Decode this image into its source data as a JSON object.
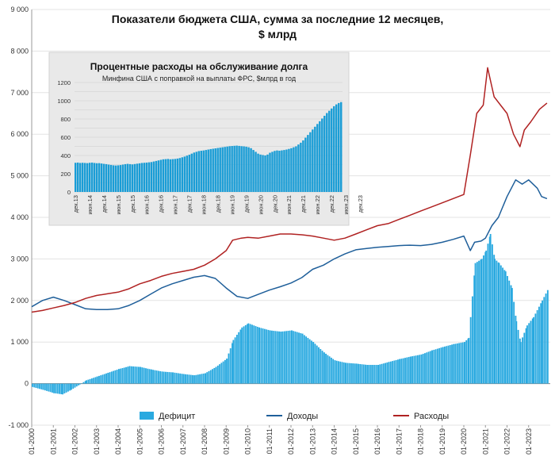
{
  "chart_data": [
    {
      "type": "line",
      "title": "Показатели бюджета США, сумма за последние 12 месяцев,",
      "subtitle": "$ млрд",
      "ylim": [
        -1000,
        9000
      ],
      "yticks": [
        -1000,
        0,
        1000,
        2000,
        3000,
        4000,
        5000,
        6000,
        7000,
        8000,
        9000
      ],
      "ytick_labels": [
        "-1 000",
        "0",
        "1 000",
        "2 000",
        "3 000",
        "4 000",
        "5 000",
        "6 000",
        "7 000",
        "8 000",
        "9 000"
      ],
      "xtick_labels": [
        "01-2000",
        "01-2001",
        "01-2002",
        "01-2003",
        "01-2004",
        "01-2005",
        "01-2006",
        "01-2007",
        "01-2008",
        "01-2009",
        "01-2010",
        "01-2011",
        "01-2012",
        "01-2013",
        "01-2014",
        "01-2015",
        "01-2016",
        "01-2017",
        "01-2018",
        "01-2019",
        "01-2020",
        "01-2021",
        "01-2022",
        "01-2023"
      ],
      "grid": true,
      "legend_position": "bottom",
      "series": [
        {
          "name": "Дефицит",
          "kind": "area",
          "color": "#29a9e0",
          "points": [
            [
              2000.0,
              -80
            ],
            [
              2000.5,
              -150
            ],
            [
              2001.0,
              -230
            ],
            [
              2001.4,
              -260
            ],
            [
              2001.8,
              -150
            ],
            [
              2002.2,
              -20
            ],
            [
              2002.5,
              80
            ],
            [
              2003.0,
              170
            ],
            [
              2003.5,
              260
            ],
            [
              2004.0,
              350
            ],
            [
              2004.5,
              420
            ],
            [
              2005.0,
              400
            ],
            [
              2005.5,
              340
            ],
            [
              2006.0,
              290
            ],
            [
              2006.5,
              270
            ],
            [
              2007.0,
              230
            ],
            [
              2007.5,
              200
            ],
            [
              2008.0,
              250
            ],
            [
              2008.5,
              400
            ],
            [
              2009.0,
              600
            ],
            [
              2009.3,
              1050
            ],
            [
              2009.7,
              1350
            ],
            [
              2010.0,
              1450
            ],
            [
              2010.5,
              1350
            ],
            [
              2011.0,
              1280
            ],
            [
              2011.5,
              1250
            ],
            [
              2012.0,
              1280
            ],
            [
              2012.5,
              1200
            ],
            [
              2013.0,
              1000
            ],
            [
              2013.5,
              750
            ],
            [
              2014.0,
              560
            ],
            [
              2014.5,
              500
            ],
            [
              2015.0,
              480
            ],
            [
              2015.5,
              450
            ],
            [
              2016.0,
              450
            ],
            [
              2016.5,
              520
            ],
            [
              2017.0,
              590
            ],
            [
              2017.5,
              650
            ],
            [
              2018.0,
              700
            ],
            [
              2018.5,
              800
            ],
            [
              2019.0,
              880
            ],
            [
              2019.5,
              950
            ],
            [
              2020.0,
              1000
            ],
            [
              2020.2,
              1100
            ],
            [
              2020.5,
              2900
            ],
            [
              2020.8,
              3000
            ],
            [
              2021.0,
              3200
            ],
            [
              2021.2,
              3600
            ],
            [
              2021.4,
              3000
            ],
            [
              2021.6,
              2900
            ],
            [
              2021.9,
              2700
            ],
            [
              2022.2,
              2300
            ],
            [
              2022.4,
              1500
            ],
            [
              2022.6,
              1000
            ],
            [
              2022.9,
              1400
            ],
            [
              2023.2,
              1600
            ],
            [
              2023.6,
              2000
            ],
            [
              2023.85,
              2250
            ]
          ]
        },
        {
          "name": "Доходы",
          "kind": "line",
          "color": "#1f5f9a",
          "points": [
            [
              2000.0,
              1850
            ],
            [
              2000.5,
              2000
            ],
            [
              2001.0,
              2080
            ],
            [
              2001.5,
              2000
            ],
            [
              2002.0,
              1900
            ],
            [
              2002.5,
              1800
            ],
            [
              2003.0,
              1780
            ],
            [
              2003.5,
              1780
            ],
            [
              2004.0,
              1800
            ],
            [
              2004.5,
              1880
            ],
            [
              2005.0,
              2000
            ],
            [
              2005.5,
              2150
            ],
            [
              2006.0,
              2300
            ],
            [
              2006.5,
              2400
            ],
            [
              2007.0,
              2480
            ],
            [
              2007.5,
              2560
            ],
            [
              2008.0,
              2600
            ],
            [
              2008.5,
              2530
            ],
            [
              2009.0,
              2300
            ],
            [
              2009.5,
              2100
            ],
            [
              2010.0,
              2050
            ],
            [
              2010.5,
              2150
            ],
            [
              2011.0,
              2250
            ],
            [
              2011.5,
              2330
            ],
            [
              2012.0,
              2420
            ],
            [
              2012.5,
              2550
            ],
            [
              2013.0,
              2750
            ],
            [
              2013.5,
              2850
            ],
            [
              2014.0,
              3000
            ],
            [
              2014.5,
              3120
            ],
            [
              2015.0,
              3220
            ],
            [
              2015.5,
              3250
            ],
            [
              2016.0,
              3280
            ],
            [
              2016.5,
              3300
            ],
            [
              2017.0,
              3320
            ],
            [
              2017.5,
              3330
            ],
            [
              2018.0,
              3320
            ],
            [
              2018.5,
              3350
            ],
            [
              2019.0,
              3400
            ],
            [
              2019.5,
              3470
            ],
            [
              2020.0,
              3550
            ],
            [
              2020.3,
              3200
            ],
            [
              2020.5,
              3400
            ],
            [
              2020.8,
              3430
            ],
            [
              2021.0,
              3500
            ],
            [
              2021.3,
              3800
            ],
            [
              2021.6,
              4000
            ],
            [
              2022.0,
              4500
            ],
            [
              2022.4,
              4900
            ],
            [
              2022.7,
              4800
            ],
            [
              2023.0,
              4900
            ],
            [
              2023.4,
              4700
            ],
            [
              2023.6,
              4500
            ],
            [
              2023.85,
              4450
            ]
          ]
        },
        {
          "name": "Расходы",
          "kind": "line",
          "color": "#b02222",
          "points": [
            [
              2000.0,
              1720
            ],
            [
              2000.5,
              1760
            ],
            [
              2001.0,
              1820
            ],
            [
              2001.5,
              1880
            ],
            [
              2002.0,
              1950
            ],
            [
              2002.5,
              2050
            ],
            [
              2003.0,
              2120
            ],
            [
              2003.5,
              2160
            ],
            [
              2004.0,
              2200
            ],
            [
              2004.5,
              2280
            ],
            [
              2005.0,
              2400
            ],
            [
              2005.5,
              2480
            ],
            [
              2006.0,
              2580
            ],
            [
              2006.5,
              2650
            ],
            [
              2007.0,
              2700
            ],
            [
              2007.5,
              2750
            ],
            [
              2008.0,
              2850
            ],
            [
              2008.5,
              3000
            ],
            [
              2009.0,
              3200
            ],
            [
              2009.3,
              3450
            ],
            [
              2009.7,
              3500
            ],
            [
              2010.0,
              3520
            ],
            [
              2010.5,
              3500
            ],
            [
              2011.0,
              3550
            ],
            [
              2011.5,
              3600
            ],
            [
              2012.0,
              3600
            ],
            [
              2012.5,
              3580
            ],
            [
              2013.0,
              3550
            ],
            [
              2013.5,
              3500
            ],
            [
              2014.0,
              3450
            ],
            [
              2014.5,
              3500
            ],
            [
              2015.0,
              3600
            ],
            [
              2015.5,
              3700
            ],
            [
              2016.0,
              3800
            ],
            [
              2016.5,
              3850
            ],
            [
              2017.0,
              3950
            ],
            [
              2017.5,
              4050
            ],
            [
              2018.0,
              4150
            ],
            [
              2018.5,
              4250
            ],
            [
              2019.0,
              4350
            ],
            [
              2019.5,
              4450
            ],
            [
              2020.0,
              4550
            ],
            [
              2020.3,
              5500
            ],
            [
              2020.6,
              6500
            ],
            [
              2020.9,
              6700
            ],
            [
              2021.1,
              7600
            ],
            [
              2021.4,
              6900
            ],
            [
              2021.7,
              6700
            ],
            [
              2022.0,
              6500
            ],
            [
              2022.3,
              6000
            ],
            [
              2022.6,
              5700
            ],
            [
              2022.8,
              6100
            ],
            [
              2023.1,
              6300
            ],
            [
              2023.5,
              6600
            ],
            [
              2023.85,
              6750
            ]
          ]
        }
      ]
    },
    {
      "type": "bar",
      "title": "Процентные расходы на обслуживание долга",
      "subtitle": "Минфина США с поправкой на выплаты ФРС, $млрд в год",
      "ylim": [
        0,
        1200
      ],
      "yticks": [
        0,
        100,
        200,
        300,
        400,
        500,
        600,
        700,
        800,
        900,
        1000,
        1100,
        1200
      ],
      "xtick_labels": [
        "дек.13",
        "июн.14",
        "дек.14",
        "июн.15",
        "дек.15",
        "июн.16",
        "дек.16",
        "июн.17",
        "дек.17",
        "июн.18",
        "дек.18",
        "июн.19",
        "дек.19",
        "июн.20",
        "дек.20",
        "июн.21",
        "дек.21",
        "июн.22",
        "дек.22",
        "июн.23",
        "дек.23"
      ],
      "color": "#1a9dd6",
      "values": [
        320,
        322,
        318,
        320,
        318,
        316,
        320,
        322,
        318,
        315,
        316,
        312,
        308,
        305,
        300,
        296,
        292,
        290,
        292,
        295,
        300,
        305,
        308,
        305,
        302,
        306,
        310,
        314,
        318,
        320,
        322,
        325,
        328,
        334,
        340,
        346,
        352,
        358,
        360,
        362,
        358,
        360,
        362,
        366,
        372,
        380,
        388,
        398,
        408,
        420,
        432,
        440,
        448,
        452,
        455,
        460,
        465,
        470,
        474,
        478,
        482,
        486,
        490,
        494,
        498,
        502,
        504,
        506,
        508,
        505,
        502,
        500,
        496,
        490,
        480,
        460,
        440,
        420,
        410,
        405,
        400,
        410,
        430,
        440,
        450,
        455,
        452,
        456,
        460,
        465,
        472,
        480,
        490,
        500,
        520,
        540,
        565,
        595,
        625,
        655,
        685,
        715,
        745,
        775,
        805,
        835,
        865,
        890,
        915,
        940,
        960,
        975,
        985
      ]
    }
  ],
  "legend": {
    "deficit": "Дефицит",
    "revenue": "Доходы",
    "spending": "Расходы"
  }
}
